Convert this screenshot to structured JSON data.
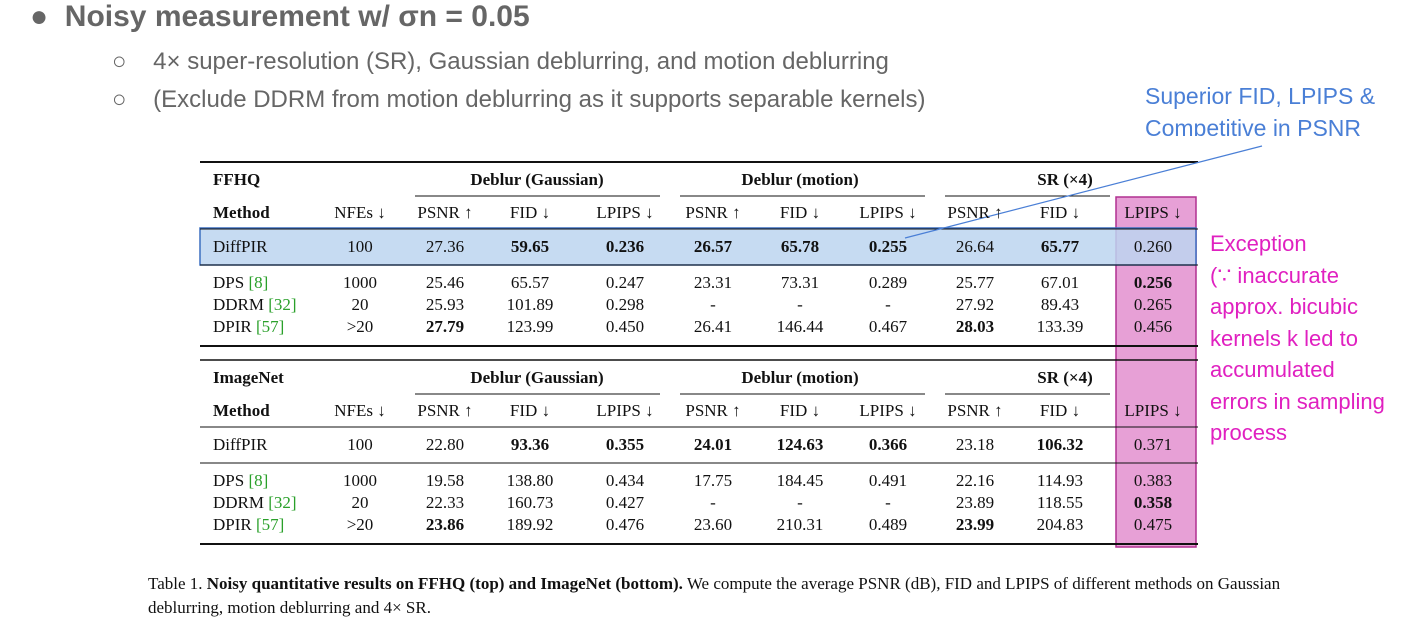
{
  "bullets": {
    "main": "Noisy measurement w/ σn = 0.05",
    "sub": [
      "4× super-resolution (SR), Gaussian deblurring, and motion deblurring",
      "(Exclude DDRM from motion deblurring as it supports separable kernels)"
    ]
  },
  "annotations": {
    "superior": [
      "Superior FID, LPIPS &",
      "Competitive in PSNR"
    ],
    "exception": [
      "Exception",
      "(∵ inaccurate",
      "approx. bicubic",
      "kernels k led to",
      "accumulated",
      "errors in sampling",
      "process"
    ]
  },
  "tables": [
    {
      "dataset": "FFHQ",
      "groups": [
        "Deblur (Gaussian)",
        "Deblur (motion)",
        "SR (×4)"
      ],
      "header": [
        "Method",
        "NFEs ↓",
        "PSNR ↑",
        "FID ↓",
        "LPIPS ↓",
        "PSNR ↑",
        "FID ↓",
        "LPIPS ↓",
        "PSNR ↑",
        "FID ↓",
        "LPIPS ↓"
      ],
      "rows": [
        {
          "method": "DiffPIR",
          "values": [
            "100",
            "27.36",
            "59.65",
            "0.236",
            "26.57",
            "65.78",
            "0.255",
            "26.64",
            "65.77",
            "0.260"
          ]
        },
        {
          "method": "DPS",
          "ref": "[8]",
          "values": [
            "1000",
            "25.46",
            "65.57",
            "0.247",
            "23.31",
            "73.31",
            "0.289",
            "25.77",
            "67.01",
            "0.256"
          ]
        },
        {
          "method": "DDRM",
          "ref": "[32]",
          "values": [
            "20",
            "25.93",
            "101.89",
            "0.298",
            "-",
            "-",
            "-",
            "27.92",
            "89.43",
            "0.265"
          ]
        },
        {
          "method": "DPIR",
          "ref": "[57]",
          "values": [
            ">20",
            "27.79",
            "123.99",
            "0.450",
            "26.41",
            "146.44",
            "0.467",
            "28.03",
            "133.39",
            "0.456"
          ]
        }
      ]
    },
    {
      "dataset": "ImageNet",
      "groups": [
        "Deblur (Gaussian)",
        "Deblur (motion)",
        "SR (×4)"
      ],
      "header": [
        "Method",
        "NFEs ↓",
        "PSNR ↑",
        "FID ↓",
        "LPIPS ↓",
        "PSNR ↑",
        "FID ↓",
        "LPIPS ↓",
        "PSNR ↑",
        "FID ↓",
        "LPIPS ↓"
      ],
      "rows": [
        {
          "method": "DiffPIR",
          "values": [
            "100",
            "22.80",
            "93.36",
            "0.355",
            "24.01",
            "124.63",
            "0.366",
            "23.18",
            "106.32",
            "0.371"
          ]
        },
        {
          "method": "DPS",
          "ref": "[8]",
          "values": [
            "1000",
            "19.58",
            "138.80",
            "0.434",
            "17.75",
            "184.45",
            "0.491",
            "22.16",
            "114.93",
            "0.383"
          ]
        },
        {
          "method": "DDRM",
          "ref": "[32]",
          "values": [
            "20",
            "22.33",
            "160.73",
            "0.427",
            "-",
            "-",
            "-",
            "23.89",
            "118.55",
            "0.358"
          ]
        },
        {
          "method": "DPIR",
          "ref": "[57]",
          "values": [
            ">20",
            "23.86",
            "189.92",
            "0.476",
            "23.60",
            "210.31",
            "0.489",
            "23.99",
            "204.83",
            "0.475"
          ]
        }
      ]
    }
  ],
  "caption": {
    "label": "Table 1.",
    "bold": "Noisy quantitative results on FFHQ (top) and ImageNet (bottom).",
    "text": "We compute the average PSNR (dB), FID and LPIPS of different methods on Gaussian deblurring, motion deblurring and 4× SR."
  }
}
